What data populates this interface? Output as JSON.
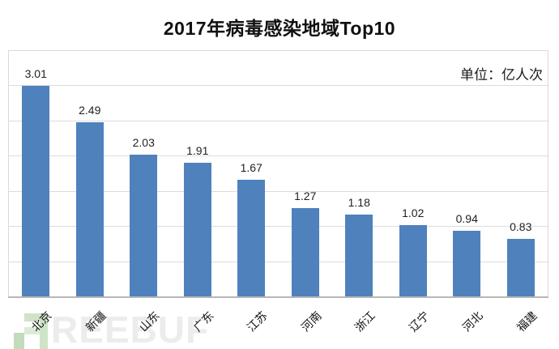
{
  "header": {
    "title": "2017年病毒感染地域Top10"
  },
  "chart_data": {
    "type": "bar",
    "title": "2017年病毒感染地域Top10",
    "unit_label": "单位：亿人次",
    "categories": [
      "北京",
      "新疆",
      "山东",
      "广东",
      "江苏",
      "河南",
      "浙江",
      "辽宁",
      "河北",
      "福建"
    ],
    "values": [
      3.01,
      2.49,
      2.03,
      1.91,
      1.67,
      1.27,
      1.18,
      1.02,
      0.94,
      0.83
    ],
    "value_labels": [
      "3.01",
      "2.49",
      "2.03",
      "1.91",
      "1.67",
      "1.27",
      "1.18",
      "1.02",
      "0.94",
      "0.83"
    ],
    "xlabel": "",
    "ylabel": "",
    "ylim": [
      0,
      3.5
    ],
    "grid_step": 0.5,
    "grid": true,
    "legend_position": "none",
    "bar_color": "#4f81bd",
    "gridline_color": "#dcdcdc",
    "axis_line_color": "#b7b7b7",
    "plot_border_color": "#d9d9d9",
    "value_label_color": "#1f1f1f",
    "category_label_color": "#111111"
  },
  "watermark": {
    "icon": "freebuf-logo-icon",
    "text": "REEBUF",
    "text_color": "#ececec",
    "icon_color_light": "#cfe3c8",
    "icon_color_dark": "#c2dbba",
    "icon_color_pale": "#dcebd6"
  }
}
